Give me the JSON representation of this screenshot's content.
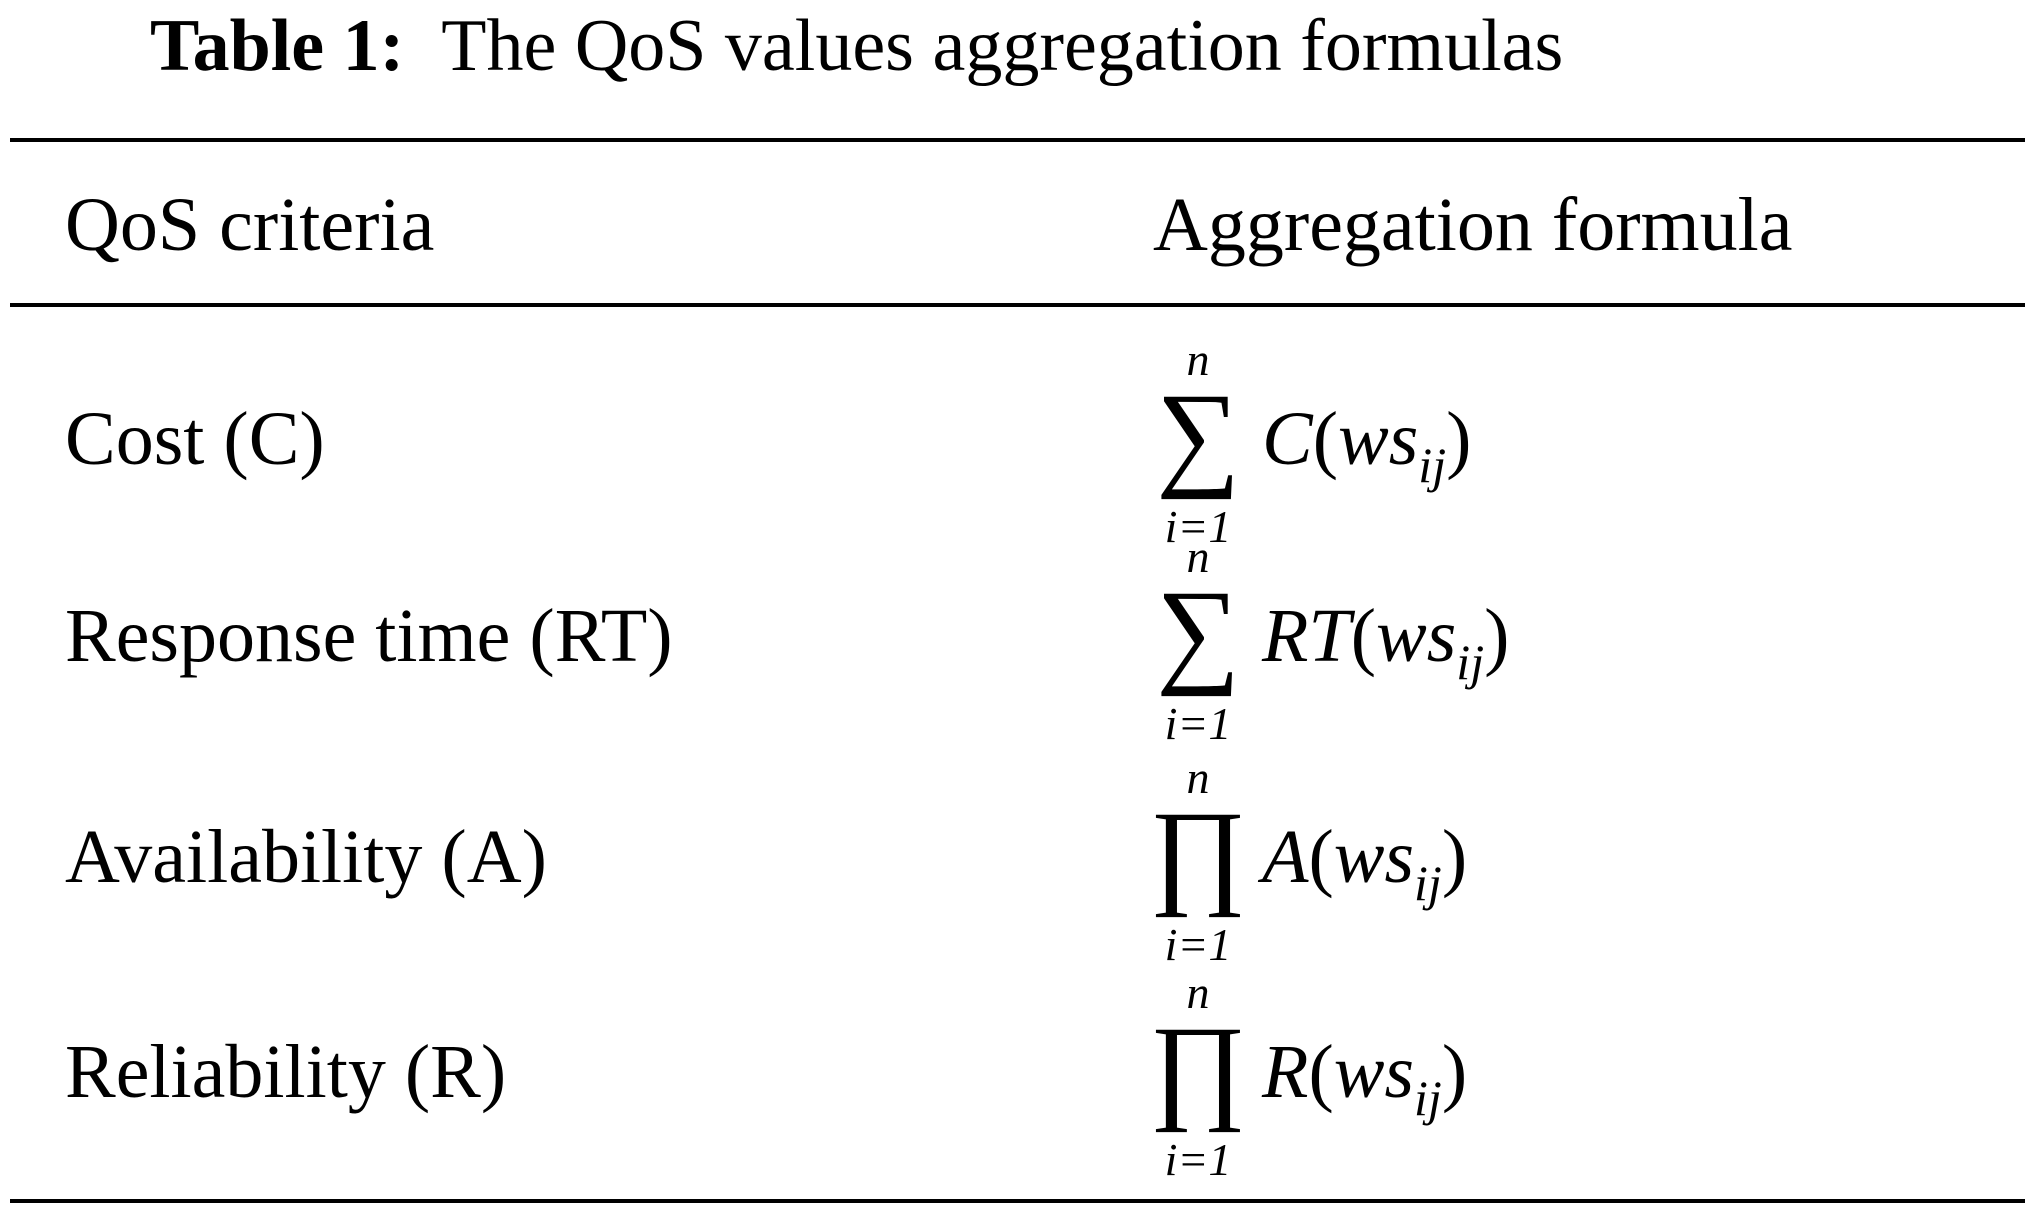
{
  "caption": {
    "label": "Table 1:",
    "text": "The QoS values aggregation formulas"
  },
  "table": {
    "header": [
      "QoS criteria",
      "Aggregation formula"
    ],
    "rows": [
      {
        "criteria": "Cost (C)",
        "formula": {
          "upper": "n",
          "op": "∑",
          "lower": "i=1",
          "fn": "C",
          "open": "(",
          "arg": "ws",
          "sub": "ij",
          "close": ")"
        }
      },
      {
        "criteria": "Response time (RT)",
        "formula": {
          "upper": "n",
          "op": "∑",
          "lower": "i=1",
          "fn": "RT",
          "open": "(",
          "arg": "ws",
          "sub": "ij",
          "close": ")"
        }
      },
      {
        "criteria": "Availability (A)",
        "formula": {
          "upper": "n",
          "op": "∏",
          "lower": "i=1",
          "fn": "A",
          "open": "(",
          "arg": "ws",
          "sub": "ij",
          "close": ")"
        }
      },
      {
        "criteria": "Reliability (R)",
        "formula": {
          "upper": "n",
          "op": "∏",
          "lower": "i=1",
          "fn": "R",
          "open": "(",
          "arg": "ws",
          "sub": "ij",
          "close": ")"
        }
      }
    ]
  }
}
